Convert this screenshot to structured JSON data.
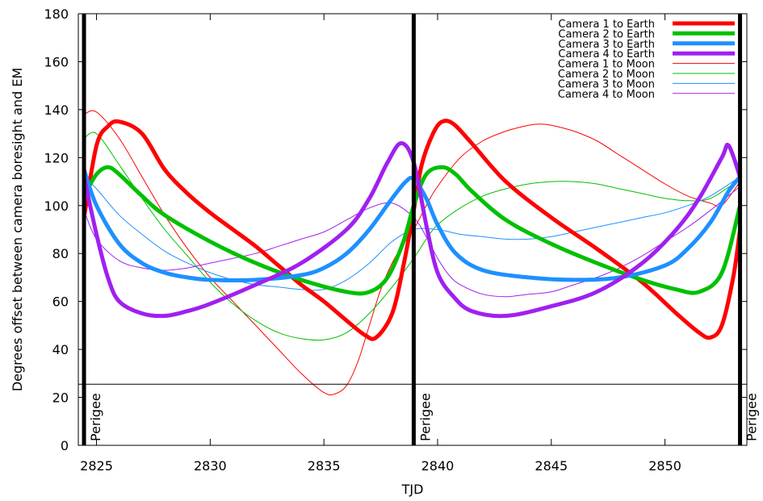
{
  "chart_data": {
    "type": "line",
    "title": "",
    "xlabel": "TJD",
    "ylabel": "Degrees offset between camera boresight and EM",
    "xlim": [
      2824.2,
      2853.6
    ],
    "ylim": [
      0,
      180
    ],
    "xticks": [
      2825,
      2830,
      2835,
      2840,
      2845,
      2850
    ],
    "yticks": [
      0,
      20,
      40,
      60,
      80,
      100,
      120,
      140,
      160,
      180
    ],
    "grid": false,
    "legend_position": "top-right",
    "reference_line_y": 25.5,
    "perigee_markers": [
      {
        "x": 2824.45,
        "label": "Perigee"
      },
      {
        "x": 2838.95,
        "label": "Perigee"
      },
      {
        "x": 2853.3,
        "label": "Perigee"
      }
    ],
    "series": [
      {
        "name": "Camera 1 to Earth",
        "color": "#ff0000",
        "weight": "thick",
        "x": [
          2824.45,
          2825,
          2825.5,
          2826,
          2827,
          2828,
          2829,
          2830,
          2831,
          2832,
          2833,
          2834,
          2835,
          2836,
          2836.8,
          2837.3,
          2838,
          2838.5,
          2838.95,
          2839.3,
          2839.8,
          2840.2,
          2840.7,
          2841.5,
          2843,
          2845,
          2847,
          2849,
          2850.5,
          2851.5,
          2852,
          2852.5,
          2853,
          2853.3
        ],
        "y": [
          95,
          125,
          133,
          135,
          130,
          115,
          105,
          97,
          90,
          83,
          75,
          67,
          60,
          52,
          46,
          45,
          55,
          75,
          98,
          117,
          130,
          135,
          134,
          126,
          110,
          95,
          82,
          68,
          55,
          47,
          45,
          50,
          70,
          90
        ]
      },
      {
        "name": "Camera 2 to Earth",
        "color": "#00c000",
        "weight": "thick",
        "x": [
          2824.45,
          2825,
          2825.5,
          2826,
          2827,
          2828,
          2830,
          2832,
          2834,
          2836,
          2837,
          2837.8,
          2838.5,
          2838.95,
          2839.5,
          2840.2,
          2840.8,
          2841.5,
          2843,
          2845,
          2847,
          2849,
          2850.5,
          2851.5,
          2852.5,
          2853.3
        ],
        "y": [
          104,
          113,
          116,
          113,
          104,
          96,
          85,
          76,
          69,
          64,
          64,
          70,
          85,
          100,
          113,
          116,
          113,
          106,
          94,
          84,
          76,
          69,
          65,
          64,
          72,
          100
        ]
      },
      {
        "name": "Camera 3 to Earth",
        "color": "#1e90ff",
        "weight": "thick",
        "x": [
          2824.45,
          2825,
          2826,
          2827,
          2828,
          2829,
          2830,
          2832,
          2834,
          2835,
          2836,
          2837,
          2838,
          2838.6,
          2838.95,
          2839.5,
          2840,
          2840.8,
          2842,
          2844,
          2846,
          2848,
          2850,
          2851,
          2852,
          2852.8,
          2853.3
        ],
        "y": [
          115,
          100,
          84,
          76,
          72,
          70,
          69,
          69,
          71,
          74,
          80,
          90,
          103,
          110,
          111,
          103,
          92,
          80,
          73,
          70,
          69,
          70,
          75,
          82,
          93,
          106,
          112
        ]
      },
      {
        "name": "Camera 4 to Earth",
        "color": "#a020f0",
        "weight": "thick",
        "x": [
          2824.45,
          2825,
          2825.5,
          2826,
          2827,
          2828,
          2829,
          2830,
          2832,
          2834,
          2836,
          2837,
          2837.8,
          2838.4,
          2838.95,
          2839.5,
          2840,
          2840.7,
          2841.5,
          2843,
          2845,
          2847,
          2849,
          2850.5,
          2851.5,
          2852.5,
          2852.8,
          2853.3
        ],
        "y": [
          112,
          88,
          70,
          60,
          55,
          54,
          56,
          59,
          67,
          76,
          90,
          103,
          118,
          126,
          118,
          92,
          72,
          62,
          56,
          54,
          58,
          64,
          76,
          90,
          103,
          120,
          125,
          112
        ]
      },
      {
        "name": "Camera 1 to Moon",
        "color": "#ff0000",
        "weight": "thin",
        "x": [
          2824.45,
          2825,
          2826,
          2827,
          2828,
          2829,
          2830,
          2831,
          2832,
          2833,
          2834,
          2835,
          2835.5,
          2836,
          2836.5,
          2837,
          2837.5,
          2838,
          2838.5,
          2838.95,
          2839.5,
          2840,
          2841,
          2842,
          2843,
          2844,
          2844.5,
          2845,
          2846,
          2847,
          2848,
          2849,
          2850,
          2851,
          2852,
          2852.5,
          2853.3
        ],
        "y": [
          138,
          139,
          128,
          112,
          96,
          82,
          70,
          60,
          50,
          40,
          30,
          22,
          21.5,
          25,
          35,
          50,
          65,
          76,
          84,
          90,
          100,
          108,
          120,
          127,
          131,
          133.5,
          134,
          133.5,
          131,
          127,
          121,
          115,
          109,
          104,
          101,
          100,
          110
        ]
      },
      {
        "name": "Camera 2 to Moon",
        "color": "#00c000",
        "weight": "thin",
        "x": [
          2824.45,
          2825,
          2826,
          2827,
          2828,
          2829,
          2830,
          2831,
          2832,
          2833,
          2834,
          2835,
          2836,
          2837,
          2838,
          2838.95,
          2839.5,
          2840,
          2841,
          2842,
          2843,
          2844,
          2845,
          2846,
          2847,
          2848,
          2849,
          2850,
          2851,
          2852,
          2853.3
        ],
        "y": [
          128,
          130,
          117,
          103,
          90,
          79,
          68,
          59,
          52,
          47,
          44.5,
          44,
          47,
          55,
          66,
          78,
          86,
          92,
          99,
          104,
          107,
          109,
          110,
          110,
          109,
          107,
          105,
          103,
          102,
          103,
          111
        ]
      },
      {
        "name": "Camera 3 to Moon",
        "color": "#1e90ff",
        "weight": "thin",
        "x": [
          2824.45,
          2825,
          2826,
          2827,
          2828,
          2829,
          2830,
          2831,
          2832,
          2833,
          2834,
          2835,
          2836,
          2837,
          2838,
          2838.95,
          2840,
          2841,
          2842,
          2843,
          2844,
          2845,
          2846,
          2847,
          2848,
          2849,
          2850,
          2851,
          2852,
          2853.3
        ],
        "y": [
          112,
          107,
          96,
          88,
          81,
          76,
          72,
          69,
          67,
          66,
          65,
          65,
          69,
          76,
          85,
          90,
          90,
          88,
          87,
          86,
          86,
          87,
          89,
          91,
          93,
          95,
          97,
          100,
          104,
          112
        ]
      },
      {
        "name": "Camera 4 to Moon",
        "color": "#a020f0",
        "weight": "thin",
        "x": [
          2824.45,
          2825,
          2826,
          2827,
          2828,
          2829,
          2830,
          2831,
          2832,
          2833,
          2834,
          2835,
          2836,
          2837,
          2838,
          2838.95,
          2839.5,
          2840,
          2840.5,
          2841,
          2842,
          2843,
          2844,
          2845,
          2846,
          2847,
          2848,
          2849,
          2850,
          2851,
          2852,
          2853.3
        ],
        "y": [
          98,
          86,
          77,
          74,
          73,
          74,
          76,
          78,
          80,
          83,
          86,
          89,
          94,
          99,
          101,
          95,
          87,
          78,
          71,
          67,
          63,
          62,
          63,
          64,
          67,
          70,
          74,
          79,
          85,
          91,
          98,
          108
        ]
      }
    ]
  }
}
